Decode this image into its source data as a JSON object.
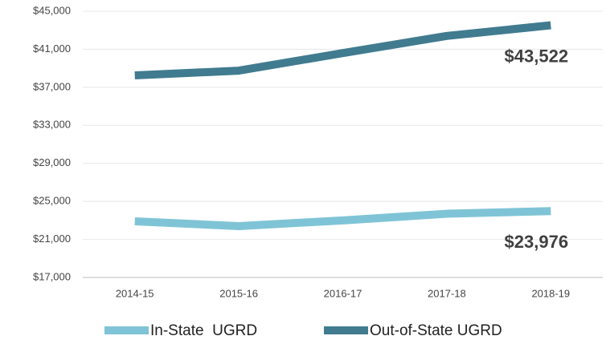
{
  "chart_data": {
    "type": "line",
    "categories": [
      "2014-15",
      "2015-16",
      "2016-17",
      "2017-18",
      "2018-19"
    ],
    "series": [
      {
        "name": "In-State  UGRD",
        "color": "#7fc4d6",
        "values": [
          22900,
          22400,
          23000,
          23700,
          23976
        ],
        "value_labels": [
          null,
          null,
          null,
          null,
          "$23,976"
        ]
      },
      {
        "name": "Out-of-State UGRD",
        "color": "#417b8f",
        "values": [
          38250,
          38750,
          40600,
          42400,
          43522
        ],
        "value_labels": [
          null,
          null,
          null,
          null,
          "$43,522"
        ]
      }
    ],
    "ylim": [
      17000,
      45000
    ],
    "yticks": [
      {
        "value": 17000,
        "label": "$17,000"
      },
      {
        "value": 21000,
        "label": "$21,000"
      },
      {
        "value": 25000,
        "label": "$25,000"
      },
      {
        "value": 29000,
        "label": "$29,000"
      },
      {
        "value": 33000,
        "label": "$33,000"
      },
      {
        "value": 37000,
        "label": "$37,000"
      },
      {
        "value": 41000,
        "label": "$41,000"
      },
      {
        "value": 45000,
        "label": "$45,000"
      }
    ],
    "grid": true,
    "legend": "bottom"
  }
}
